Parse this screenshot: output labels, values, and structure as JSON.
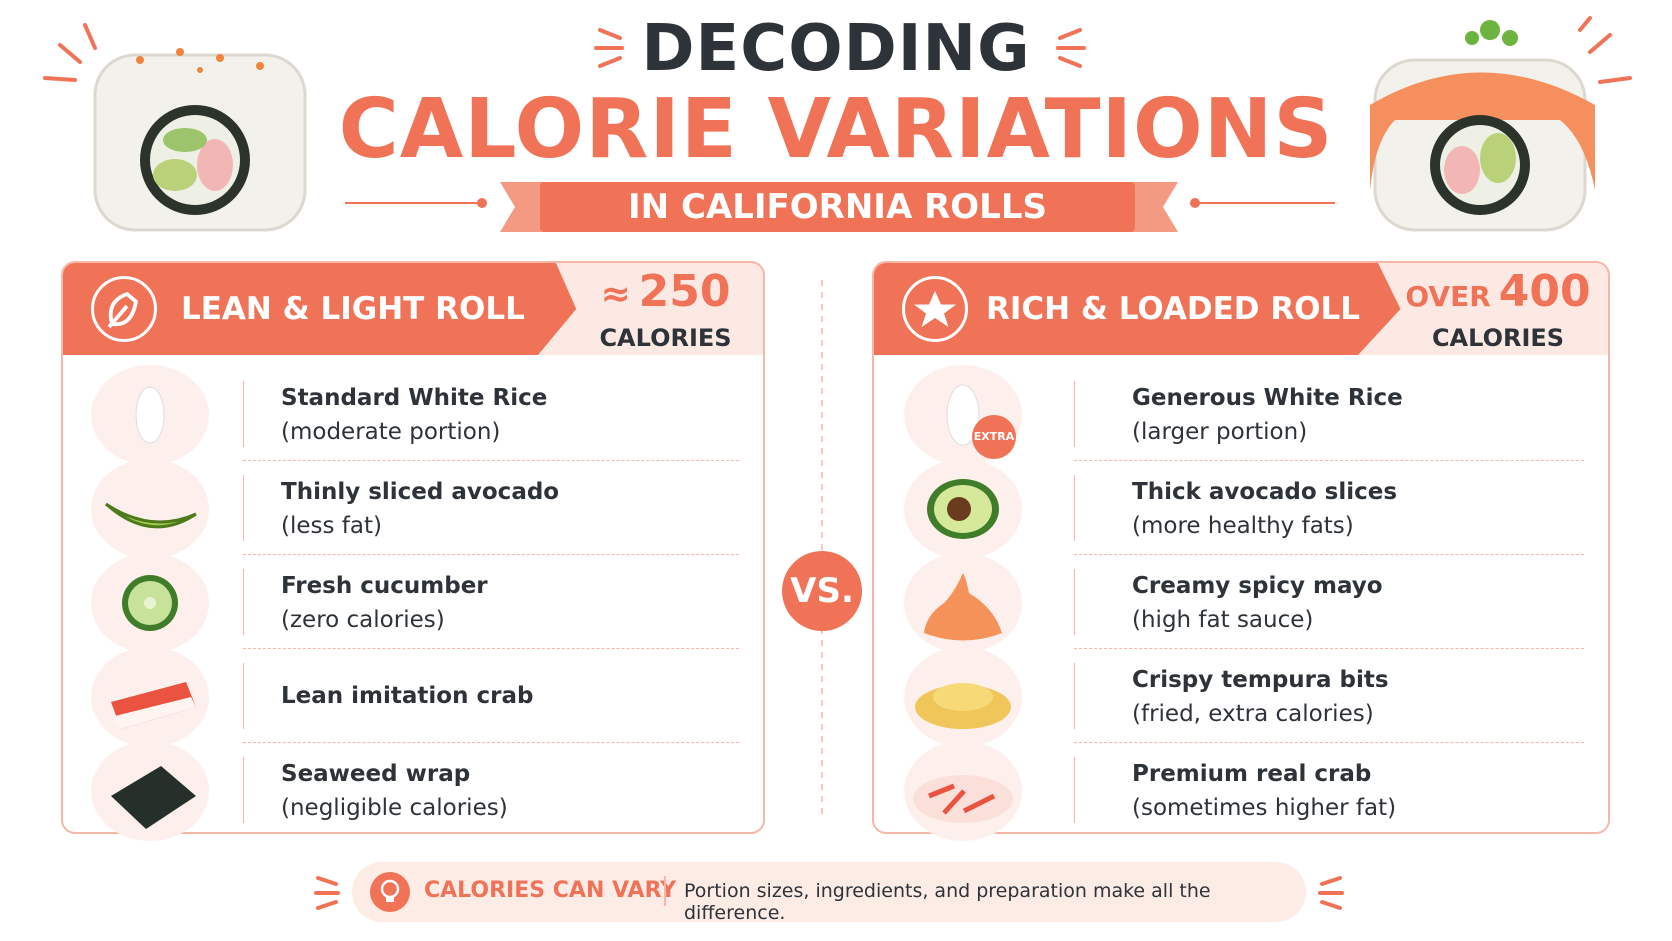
{
  "header": {
    "title_line1": "DECODING",
    "title_line2": "CALORIE VARIATIONS",
    "subtitle": "IN CALIFORNIA ROLLS"
  },
  "panels": [
    {
      "title": "LEAN & LIGHT ROLL",
      "calorie_prefix": "≈",
      "calorie_value": 250,
      "calorie_unit": "CALORIES",
      "items": [
        {
          "name": "Standard White Rice",
          "note": "(moderate portion)"
        },
        {
          "name": "Thinly sliced avocado",
          "note": "(less fat)"
        },
        {
          "name": "Fresh cucumber",
          "note": "(zero calories)"
        },
        {
          "name": "Lean imitation crab"
        },
        {
          "name": "Seaweed wrap",
          "note": "(negligible calories)"
        }
      ]
    },
    {
      "title": "RICH & LOADED ROLL",
      "calorie_prefix": "OVER",
      "calorie_value": 400,
      "calorie_unit": "CALORIES",
      "extra_tag": "EXTRA",
      "items": [
        {
          "name": "Generous White Rice",
          "note": "(larger portion)"
        },
        {
          "name": "Thick avocado slices",
          "note": "(more healthy fats)"
        },
        {
          "name": "Creamy spicy mayo",
          "note": "(high fat sauce)"
        },
        {
          "name": "Crispy tempura bits",
          "note": "(fried, extra calories)"
        },
        {
          "name": "Premium real crab",
          "note": "(sometimes higher fat)"
        }
      ]
    }
  ],
  "badge": "VS.",
  "footer": {
    "label": "CALORIES CAN VARY",
    "text": "Portion sizes, ingredients, and preparation make all the difference."
  }
}
